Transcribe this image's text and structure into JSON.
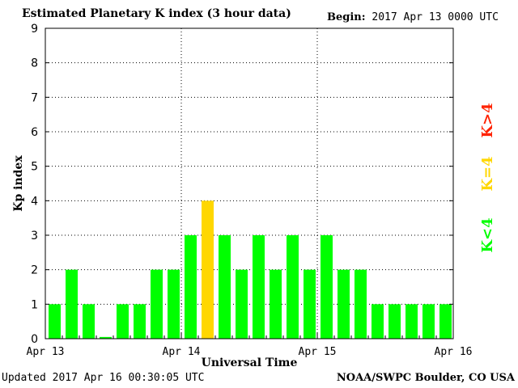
{
  "header": {
    "title": "Estimated Planetary K index (3 hour data)",
    "begin_label": "Begin:",
    "begin_value": "2017 Apr 13 0000 UTC"
  },
  "footer": {
    "updated": "Updated 2017 Apr 16 00:30:05 UTC",
    "source": "NOAA/SWPC Boulder, CO USA"
  },
  "legend": {
    "high_label": "K>4",
    "eq_label": "K=4",
    "low_label": "K<4"
  },
  "colors": {
    "low": "#00ff00",
    "eq": "#ffd700",
    "high": "#ff2200"
  },
  "chart_data": {
    "type": "bar",
    "title": "Estimated Planetary K index (3 hour data)",
    "xlabel": "Universal Time",
    "ylabel": "Kp index",
    "ylim": [
      0,
      9
    ],
    "yticks": [
      0,
      1,
      2,
      3,
      4,
      5,
      6,
      7,
      8,
      9
    ],
    "xtick_labels": [
      "Apr 13",
      "Apr 14",
      "Apr 15",
      "Apr 16"
    ],
    "grid": true,
    "values": [
      1,
      2,
      1,
      0.05,
      1,
      1,
      2,
      2,
      3,
      4,
      3,
      2,
      3,
      2,
      3,
      2,
      3,
      2,
      2,
      1,
      1,
      1,
      1,
      1
    ]
  }
}
